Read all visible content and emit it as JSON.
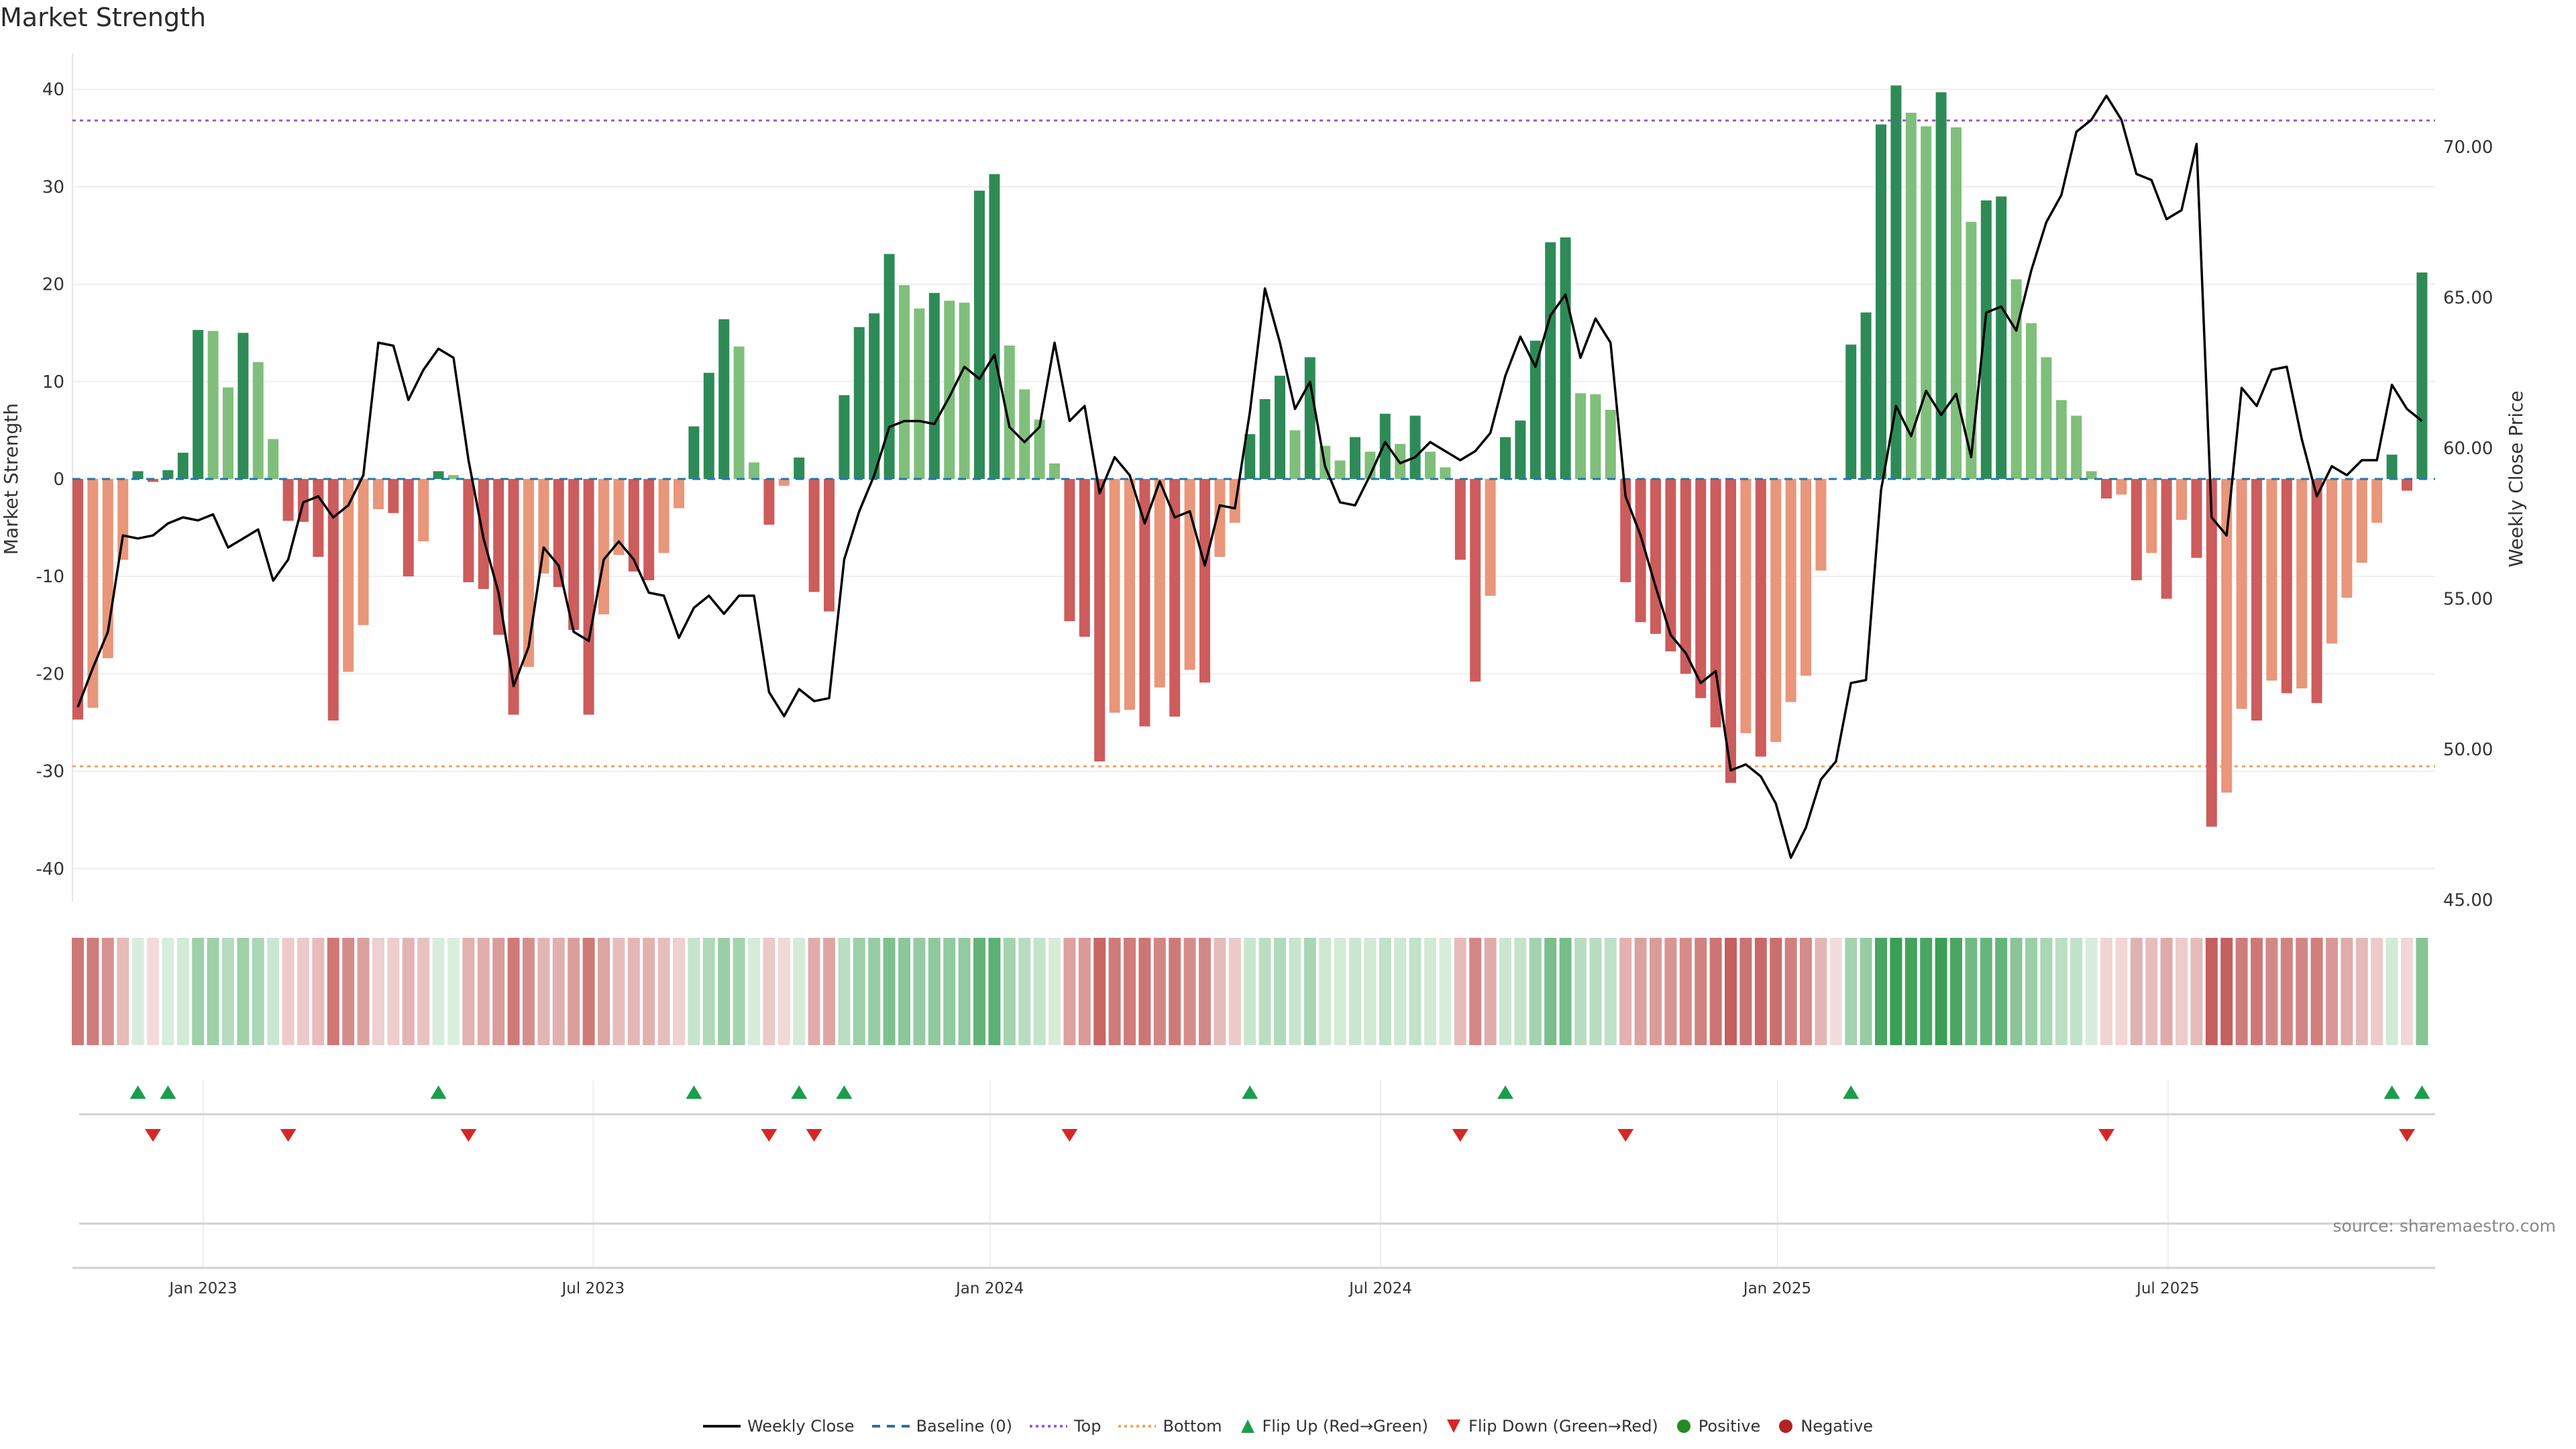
{
  "title": "Market Strength",
  "source": "source: sharemaestro.com",
  "legend": {
    "weekly_close": "Weekly Close",
    "baseline": "Baseline (0)",
    "top": "Top",
    "bottom": "Bottom",
    "flip_up": "Flip Up (Red→Green)",
    "flip_down": "Flip Down (Green→Red)",
    "positive": "Positive",
    "negative": "Negative"
  },
  "colors": {
    "strong_up": "#2e8b57",
    "weak_up": "#7fbf7b",
    "strong_down": "#cd5c5c",
    "weak_down": "#e9967a",
    "close_line": "#000000",
    "baseline": "#1f77b4",
    "top": "#9b59d6",
    "bottom": "#f4a261",
    "flip_up": "#1a9e4a",
    "flip_down": "#d62728",
    "positive": "#228b22",
    "negative": "#b22222"
  },
  "chart_data": {
    "type": "bar+line",
    "title": "Market Strength",
    "ylabel": "Market Strength",
    "y2label": "Weekly Close Price",
    "ylim": [
      -43.5,
      44
    ],
    "y2lim": [
      45,
      73.1
    ],
    "yticks": [
      -40,
      -30,
      -20,
      -10,
      0,
      10,
      20,
      30,
      40
    ],
    "y2ticks": [
      "45.00",
      "50.00",
      "55.00",
      "60.00",
      "65.00",
      "70.00"
    ],
    "top_level": 36.8,
    "bottom_level": -29.5,
    "baseline": 0,
    "xticks": [
      {
        "label": "Jan 2023",
        "week_index": 8.35
      },
      {
        "label": "Jul 2023",
        "week_index": 34.3
      },
      {
        "label": "Jan 2024",
        "week_index": 60.7
      },
      {
        "label": "Jul 2024",
        "week_index": 86.7
      },
      {
        "label": "Jan 2025",
        "week_index": 113.1
      },
      {
        "label": "Jul 2025",
        "week_index": 139.1
      }
    ],
    "strength": [
      -24.7,
      -23.5,
      -18.4,
      -8.3,
      0.8,
      -0.3,
      0.9,
      2.7,
      15.3,
      15.2,
      9.4,
      15.0,
      12.0,
      4.1,
      -4.3,
      -4.4,
      -8.0,
      -24.8,
      -19.8,
      -15.0,
      -3.1,
      -3.5,
      -10.0,
      -6.4,
      0.8,
      0.4,
      -10.6,
      -11.3,
      -16.0,
      -24.2,
      -19.3,
      -9.7,
      -11.1,
      -15.5,
      -24.2,
      -13.9,
      -7.8,
      -9.5,
      -10.4,
      -7.6,
      -3.0,
      5.4,
      10.9,
      16.4,
      13.6,
      1.7,
      -4.7,
      -0.7,
      2.2,
      -11.6,
      -13.6,
      8.6,
      15.6,
      17.0,
      23.1,
      19.9,
      17.5,
      19.1,
      18.3,
      18.1,
      29.6,
      31.3,
      13.7,
      9.2,
      6.1,
      1.6,
      -14.6,
      -16.2,
      -29.0,
      -24.0,
      -23.7,
      -25.4,
      -21.4,
      -24.4,
      -19.6,
      -20.9,
      -8.0,
      -4.5,
      4.6,
      8.2,
      10.6,
      5.0,
      12.5,
      3.4,
      1.9,
      4.3,
      2.8,
      6.7,
      3.6,
      6.5,
      2.8,
      1.2,
      -8.3,
      -20.8,
      -12.0,
      4.3,
      6.0,
      14.2,
      24.3,
      24.8,
      8.8,
      8.7,
      7.1,
      -10.6,
      -14.7,
      -15.9,
      -17.7,
      -20.0,
      -22.5,
      -25.5,
      -31.2,
      -26.1,
      -28.5,
      -27.0,
      -22.9,
      -20.2,
      -9.4,
      0,
      13.8,
      17.1,
      36.4,
      40.4,
      37.6,
      36.2,
      39.7,
      36.1,
      26.4,
      28.6,
      29.0,
      20.5,
      16.0,
      12.5,
      8.1,
      6.5,
      0.8,
      -2.0,
      -1.6,
      -10.4,
      -7.6,
      -12.3,
      -4.2,
      -8.1,
      -35.7,
      -32.2,
      -23.6,
      -24.8,
      -20.7,
      -22.0,
      -21.5,
      -23.0,
      -16.9,
      -12.2,
      -8.6,
      -4.5,
      2.5,
      -1.2,
      21.2
    ],
    "weekly_close": [
      51.4,
      52.7,
      53.9,
      57.1,
      57.0,
      57.1,
      57.5,
      57.7,
      57.6,
      57.8,
      56.7,
      57.0,
      57.3,
      55.6,
      56.3,
      58.2,
      58.4,
      57.7,
      58.1,
      59.1,
      63.5,
      63.4,
      61.6,
      62.6,
      63.3,
      63.0,
      59.6,
      57.0,
      55.2,
      52.1,
      53.4,
      56.7,
      56.1,
      53.9,
      53.6,
      56.3,
      56.9,
      56.3,
      55.2,
      55.1,
      53.7,
      54.7,
      55.1,
      54.5,
      55.1,
      55.1,
      51.9,
      51.1,
      52.0,
      51.6,
      51.7,
      56.3,
      57.9,
      59.1,
      60.7,
      60.9,
      60.9,
      60.8,
      61.7,
      62.7,
      62.3,
      63.1,
      60.7,
      60.2,
      60.7,
      63.5,
      60.9,
      61.4,
      58.5,
      59.7,
      59.1,
      57.5,
      58.9,
      57.7,
      57.9,
      56.1,
      58.1,
      58.0,
      61.2,
      65.3,
      63.5,
      61.3,
      62.2,
      59.4,
      58.2,
      58.1,
      59.1,
      60.2,
      59.5,
      59.7,
      60.2,
      59.9,
      59.6,
      59.9,
      60.5,
      62.4,
      63.7,
      62.7,
      64.4,
      65.1,
      63.0,
      64.3,
      63.5,
      58.4,
      57.1,
      55.4,
      53.8,
      53.2,
      52.2,
      52.6,
      49.3,
      49.5,
      49.1,
      48.2,
      46.4,
      47.4,
      49.0,
      49.6,
      52.2,
      52.3,
      58.6,
      61.4,
      60.4,
      61.9,
      61.1,
      61.8,
      59.7,
      64.5,
      64.7,
      63.9,
      65.9,
      67.5,
      68.4,
      70.5,
      70.9,
      71.7,
      70.9,
      69.1,
      68.9,
      67.6,
      67.9,
      70.1,
      57.7,
      57.1,
      62.0,
      61.4,
      62.6,
      62.7,
      60.3,
      58.4,
      59.4,
      59.1,
      59.6,
      59.6,
      62.1,
      61.3,
      60.9
    ]
  }
}
